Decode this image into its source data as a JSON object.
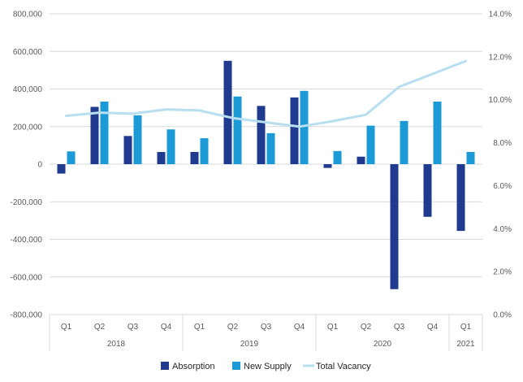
{
  "chart_data": {
    "type": "bar",
    "categories": [
      "Q1",
      "Q2",
      "Q3",
      "Q4",
      "Q1",
      "Q2",
      "Q3",
      "Q4",
      "Q1",
      "Q2",
      "Q3",
      "Q4",
      "Q1"
    ],
    "years": [
      {
        "label": "2018",
        "start": 0,
        "end": 3
      },
      {
        "label": "2019",
        "start": 4,
        "end": 7
      },
      {
        "label": "2020",
        "start": 8,
        "end": 11
      },
      {
        "label": "2021",
        "start": 12,
        "end": 12
      }
    ],
    "series": [
      {
        "name": "Absorption",
        "type": "bar",
        "axis": "left",
        "color": "#1f3a8f",
        "values": [
          -50000,
          305000,
          150000,
          65000,
          65000,
          550000,
          310000,
          355000,
          -20000,
          40000,
          -665000,
          -280000,
          -355000
        ]
      },
      {
        "name": "New Supply",
        "type": "bar",
        "axis": "left",
        "color": "#1b9ad6",
        "values": [
          68000,
          333000,
          260000,
          185000,
          138000,
          360000,
          165000,
          390000,
          70000,
          205000,
          230000,
          333000,
          65000
        ]
      },
      {
        "name": "Total Vacancy",
        "type": "line",
        "axis": "right",
        "color": "#b7dff0",
        "values": [
          9.25,
          9.4,
          9.35,
          9.55,
          9.5,
          9.15,
          8.95,
          8.75,
          9.0,
          9.3,
          10.6,
          11.2,
          11.8
        ]
      }
    ],
    "y_left": {
      "min": -800000,
      "max": 800000,
      "step": 200000,
      "tick_labels": [
        "-800,000",
        "-600,000",
        "-400,000",
        "-200,000",
        "0",
        "200,000",
        "400,000",
        "600,000",
        "800,000"
      ]
    },
    "y_right": {
      "min": 0,
      "max": 14,
      "step": 2,
      "tick_labels": [
        "0.0%",
        "2.0%",
        "4.0%",
        "6.0%",
        "8.0%",
        "10.0%",
        "12.0%",
        "14.0%"
      ]
    },
    "legend": {
      "position": "bottom-center"
    },
    "grid": true
  }
}
